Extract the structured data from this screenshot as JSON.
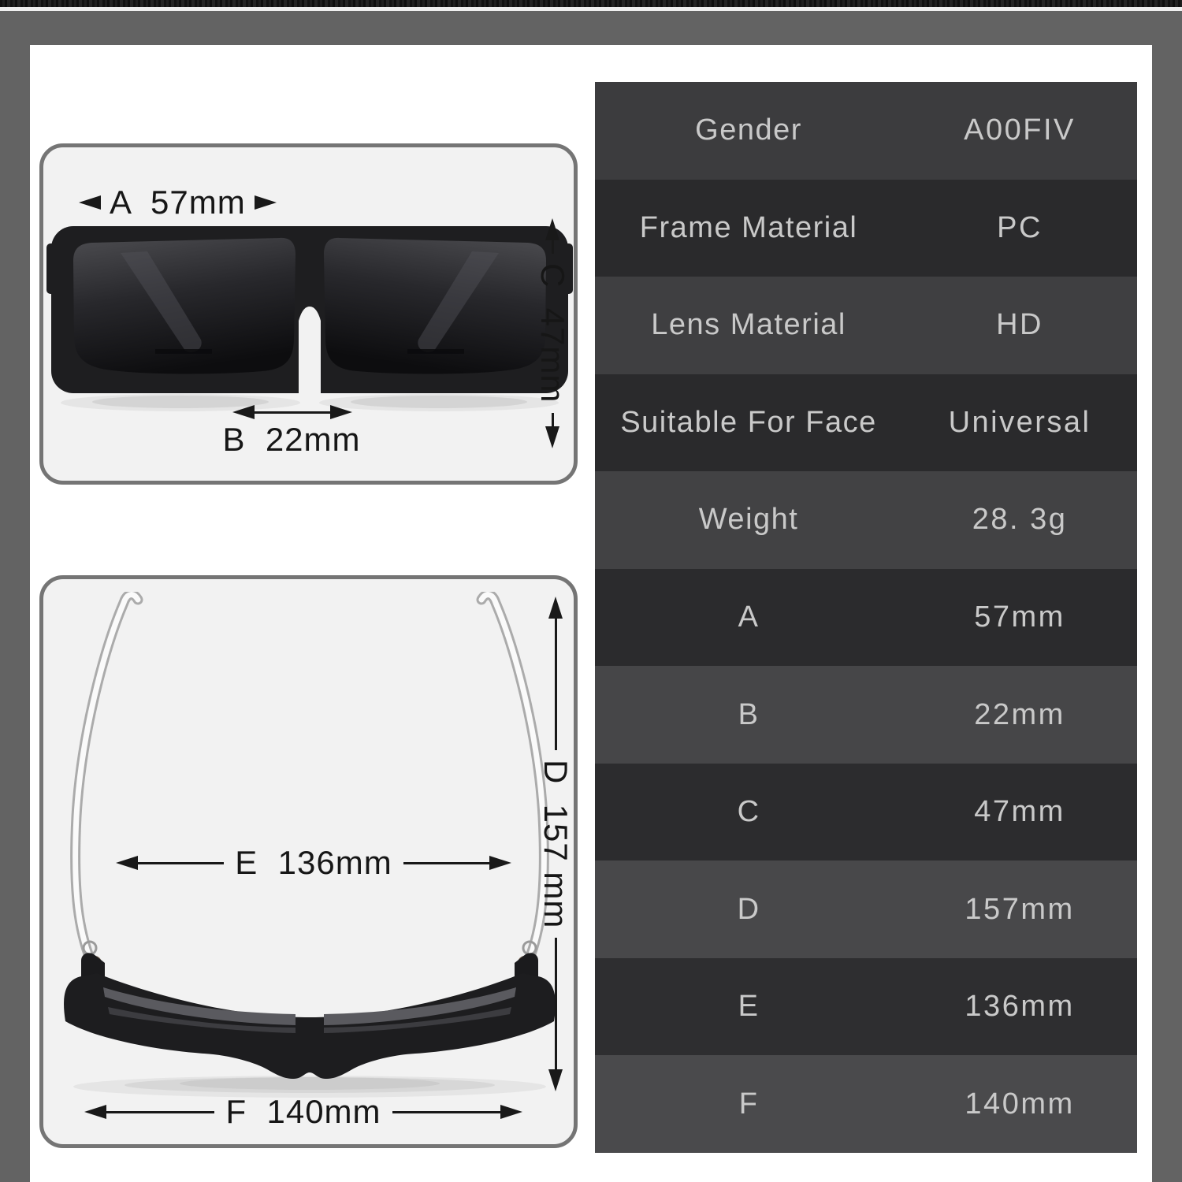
{
  "page": {
    "background_color": "#636363",
    "top_strip_color": "#181818",
    "sheet_color": "#ffffff",
    "panel_border_color": "#757575",
    "panel_fill_color": "#f2f2f2"
  },
  "front_view_panel": {
    "dim_a": "A  57mm",
    "dim_b": "B  22mm",
    "dim_c": "C  47mm"
  },
  "top_view_panel": {
    "dim_e": "E  136mm",
    "dim_d": "D  157 mm",
    "dim_f": "F  140mm"
  },
  "spec_table": {
    "row_color_dark": "#2a2a2c",
    "row_color_light": "#414143",
    "text_color": "#c9c9c9",
    "rows": [
      {
        "label": "Gender",
        "value": "A00FIV"
      },
      {
        "label": "Frame Material",
        "value": "PC"
      },
      {
        "label": "Lens Material",
        "value": "HD"
      },
      {
        "label": "Suitable For Face",
        "value": "Universal"
      },
      {
        "label": "Weight",
        "value": "28. 3g"
      },
      {
        "label": "A",
        "value": "57mm"
      },
      {
        "label": "B",
        "value": "22mm"
      },
      {
        "label": "C",
        "value": "47mm"
      },
      {
        "label": "D",
        "value": "157mm"
      },
      {
        "label": "E",
        "value": "136mm"
      },
      {
        "label": "F",
        "value": "140mm"
      }
    ]
  }
}
